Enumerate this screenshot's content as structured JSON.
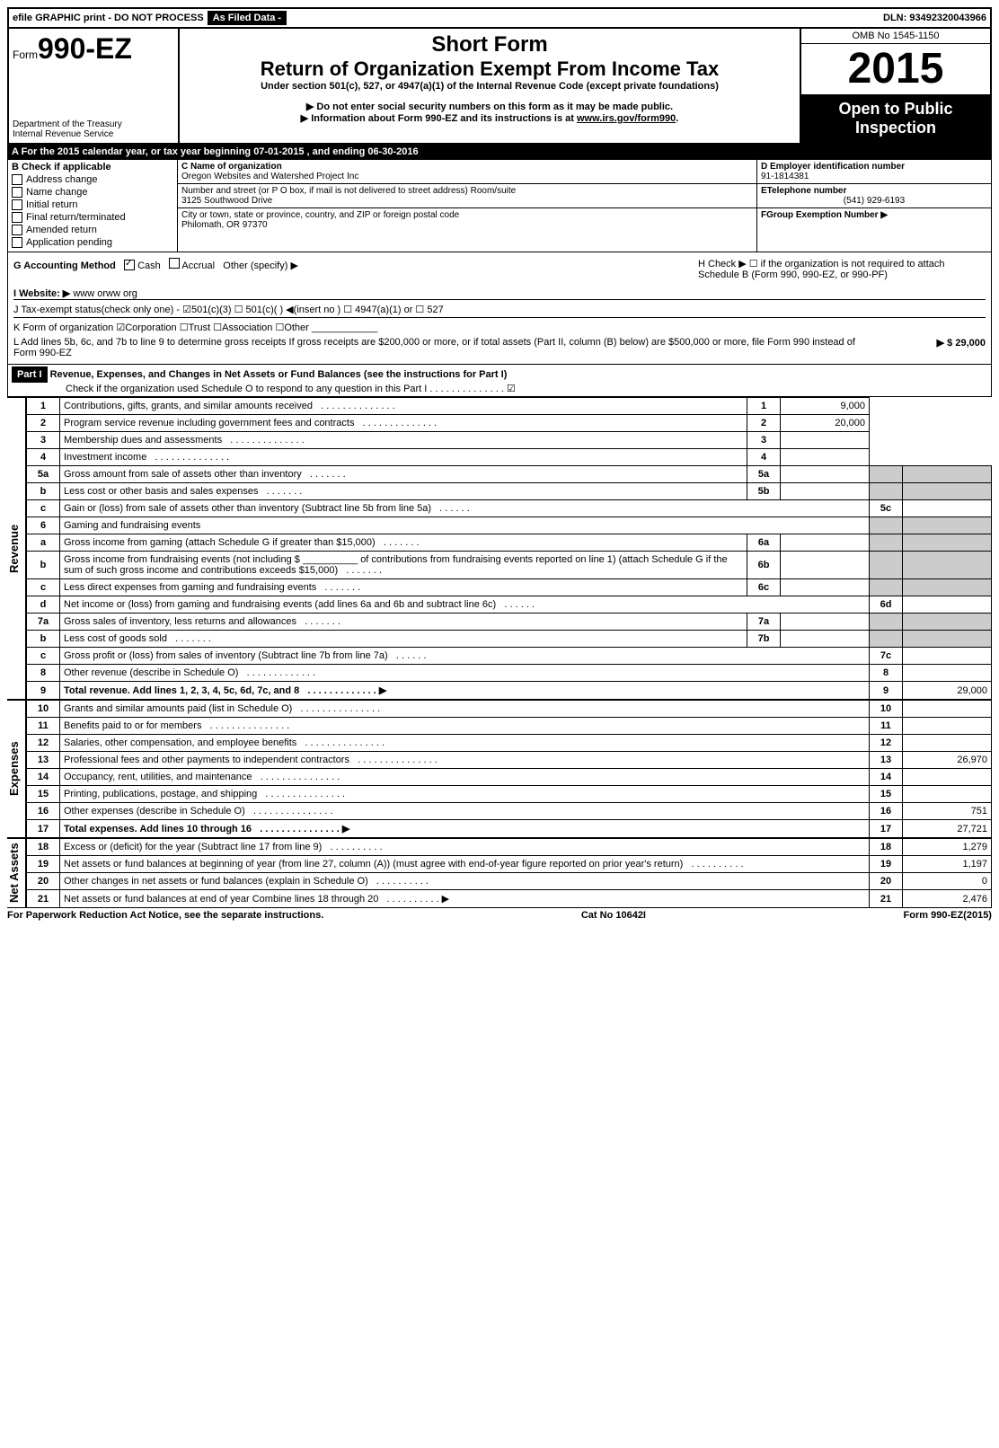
{
  "top": {
    "efile": "efile GRAPHIC print - DO NOT PROCESS",
    "asfiled": "As Filed Data -",
    "dln": "DLN: 93492320043966"
  },
  "header": {
    "form_prefix": "Form",
    "form_no": "990-EZ",
    "dept1": "Department of the Treasury",
    "dept2": "Internal Revenue Service",
    "short": "Short Form",
    "title": "Return of Organization Exempt From Income Tax",
    "sub": "Under section 501(c), 527, or 4947(a)(1) of the Internal Revenue Code (except private foundations)",
    "note1": "▶ Do not enter social security numbers on this form as it may be made public.",
    "note2": "▶ Information about Form 990-EZ and its instructions is at ",
    "note2_link": "www.irs.gov/form990",
    "omb": "OMB No 1545-1150",
    "year": "2015",
    "open": "Open to Public Inspection"
  },
  "line_a": "A  For the 2015 calendar year, or tax year beginning 07-01-2015          , and ending 06-30-2016",
  "box_b": {
    "title": "B  Check if applicable",
    "items": [
      "Address change",
      "Name change",
      "Initial return",
      "Final return/terminated",
      "Amended return",
      "Application pending"
    ]
  },
  "box_c": {
    "label": "C Name of organization",
    "name": "Oregon Websites and Watershed Project Inc",
    "street_label": "Number and street (or P O box, if mail is not delivered to street address) Room/suite",
    "street": "3125 Southwood Drive",
    "city_label": "City or town, state or province, country, and ZIP or foreign postal code",
    "city": "Philomath, OR  97370"
  },
  "box_d": {
    "d_label": "D Employer identification number",
    "d_val": "91-1814381",
    "e_label": "ETelephone number",
    "e_val": "(541) 929-6193",
    "f_label": "FGroup Exemption Number   ▶"
  },
  "line_g": {
    "label": "G Accounting Method",
    "cash": "Cash",
    "accrual": "Accrual",
    "other": "Other (specify) ▶"
  },
  "line_h": "H   Check ▶ ☐ if the organization is not required to attach Schedule B (Form 990, 990-EZ, or 990-PF)",
  "line_i": {
    "label": "I Website: ▶",
    "val": "www orww org"
  },
  "line_j": "J Tax-exempt status(check only one) - ☑501(c)(3) ☐ 501(c)( ) ◀(insert no ) ☐ 4947(a)(1) or ☐ 527",
  "line_k": "K Form of organization    ☑Corporation   ☐Trust   ☐Association   ☐Other ____________",
  "line_l": {
    "text": "L Add lines 5b, 6c, and 7b to line 9 to determine gross receipts  If gross receipts are $200,000 or more, or if total assets (Part II, column (B) below) are $500,000 or more, file Form 990 instead of Form 990-EZ",
    "val": "▶ $ 29,000"
  },
  "part1": {
    "title": "Part I",
    "desc": "Revenue, Expenses, and Changes in Net Assets or Fund Balances (see the instructions for Part I)",
    "check": "Check if the organization used Schedule O to respond to any question in this Part I  . . . . . . . . . . . . . . ☑"
  },
  "revenue": [
    {
      "n": "1",
      "t": "Contributions, gifts, grants, and similar amounts received",
      "r": "1",
      "v": "9,000"
    },
    {
      "n": "2",
      "t": "Program service revenue including government fees and contracts",
      "r": "2",
      "v": "20,000"
    },
    {
      "n": "3",
      "t": "Membership dues and assessments",
      "r": "3",
      "v": ""
    },
    {
      "n": "4",
      "t": "Investment income",
      "r": "4",
      "v": ""
    }
  ],
  "rev5": {
    "a": {
      "n": "5a",
      "t": "Gross amount from sale of assets other than inventory",
      "m": "5a",
      "mv": ""
    },
    "b": {
      "n": "b",
      "t": "Less  cost or other basis and sales expenses",
      "m": "5b",
      "mv": ""
    },
    "c": {
      "n": "c",
      "t": "Gain or (loss) from sale of assets other than inventory (Subtract line 5b from line 5a)",
      "r": "5c",
      "v": ""
    }
  },
  "rev6": {
    "h": {
      "n": "6",
      "t": "Gaming and fundraising events"
    },
    "a": {
      "n": "a",
      "t": "Gross income from gaming (attach Schedule G if greater than $15,000)",
      "m": "6a",
      "mv": ""
    },
    "b": {
      "n": "b",
      "t": "Gross income from fundraising events (not including $ __________ of contributions from fundraising events reported on line 1) (attach Schedule G if the sum of such gross income and contributions exceeds $15,000)",
      "m": "6b",
      "mv": ""
    },
    "c": {
      "n": "c",
      "t": "Less  direct expenses from gaming and fundraising events",
      "m": "6c",
      "mv": ""
    },
    "d": {
      "n": "d",
      "t": "Net income or (loss) from gaming and fundraising events (add lines 6a and 6b and subtract line 6c)",
      "r": "6d",
      "v": ""
    }
  },
  "rev7": {
    "a": {
      "n": "7a",
      "t": "Gross sales of inventory, less returns and allowances",
      "m": "7a",
      "mv": ""
    },
    "b": {
      "n": "b",
      "t": "Less  cost of goods sold",
      "m": "7b",
      "mv": ""
    },
    "c": {
      "n": "c",
      "t": "Gross profit or (loss) from sales of inventory (Subtract line 7b from line 7a)",
      "r": "7c",
      "v": ""
    }
  },
  "rev89": [
    {
      "n": "8",
      "t": "Other revenue (describe in Schedule O)",
      "r": "8",
      "v": ""
    },
    {
      "n": "9",
      "t": "Total revenue. Add lines 1, 2, 3, 4, 5c, 6d, 7c, and 8",
      "r": "9",
      "v": "29,000",
      "bold": true
    }
  ],
  "expenses": [
    {
      "n": "10",
      "t": "Grants and similar amounts paid (list in Schedule O)",
      "r": "10",
      "v": ""
    },
    {
      "n": "11",
      "t": "Benefits paid to or for members",
      "r": "11",
      "v": ""
    },
    {
      "n": "12",
      "t": "Salaries, other compensation, and employee benefits",
      "r": "12",
      "v": ""
    },
    {
      "n": "13",
      "t": "Professional fees and other payments to independent contractors",
      "r": "13",
      "v": "26,970"
    },
    {
      "n": "14",
      "t": "Occupancy, rent, utilities, and maintenance",
      "r": "14",
      "v": ""
    },
    {
      "n": "15",
      "t": "Printing, publications, postage, and shipping",
      "r": "15",
      "v": ""
    },
    {
      "n": "16",
      "t": "Other expenses (describe in Schedule O)",
      "r": "16",
      "v": "751"
    },
    {
      "n": "17",
      "t": "Total expenses. Add lines 10 through 16",
      "r": "17",
      "v": "27,721",
      "bold": true
    }
  ],
  "netassets": [
    {
      "n": "18",
      "t": "Excess or (deficit) for the year (Subtract line 17 from line 9)",
      "r": "18",
      "v": "1,279"
    },
    {
      "n": "19",
      "t": "Net assets or fund balances at beginning of year (from line 27, column (A)) (must agree with end-of-year figure reported on prior year's return)",
      "r": "19",
      "v": "1,197"
    },
    {
      "n": "20",
      "t": "Other changes in net assets or fund balances (explain in Schedule O)",
      "r": "20",
      "v": "0"
    },
    {
      "n": "21",
      "t": "Net assets or fund balances at end of year  Combine lines 18 through 20",
      "r": "21",
      "v": "2,476"
    }
  ],
  "footer": {
    "left": "For Paperwork Reduction Act Notice, see the separate instructions.",
    "mid": "Cat No 10642I",
    "right": "Form 990-EZ(2015)"
  },
  "vert": {
    "rev": "Revenue",
    "exp": "Expenses",
    "na": "Net Assets"
  }
}
